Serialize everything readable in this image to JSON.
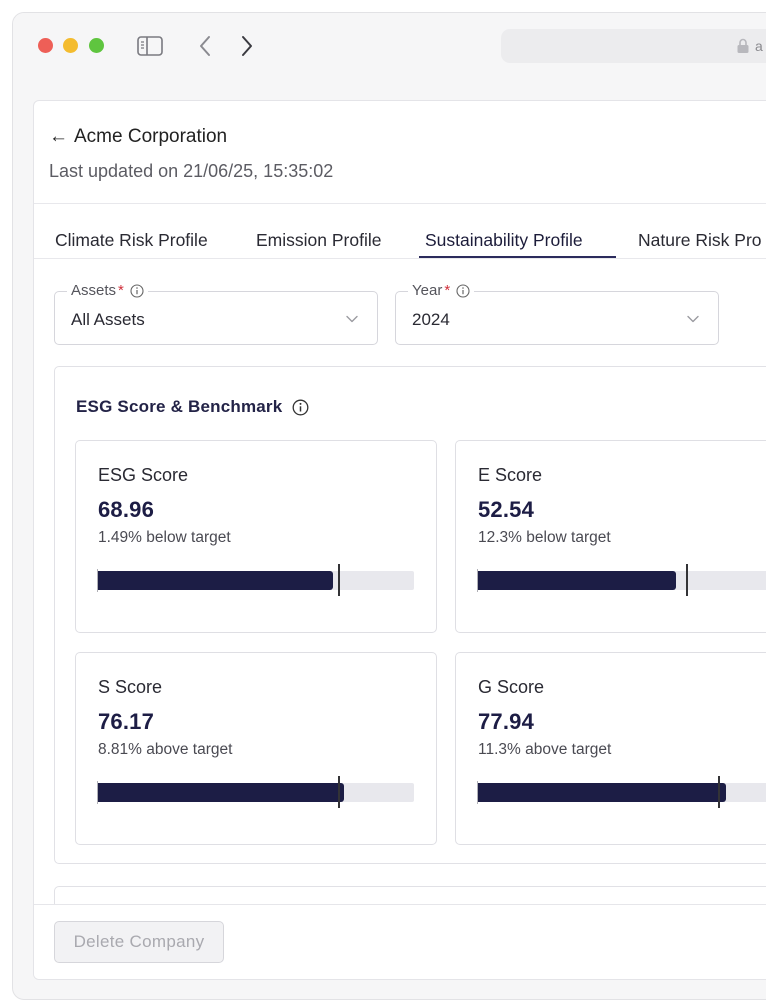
{
  "browser": {
    "url_fragment": "a"
  },
  "header": {
    "back_arrow": "←",
    "company_name": "Acme Corporation",
    "last_updated": "Last updated on 21/06/25, 15:35:02"
  },
  "tabs": [
    {
      "label": "Climate Risk Profile"
    },
    {
      "label": "Emission Profile"
    },
    {
      "label": "Sustainability Profile"
    },
    {
      "label": "Nature Risk Pro"
    }
  ],
  "active_tab": "Sustainability Profile",
  "filters": {
    "assets": {
      "label": "Assets",
      "required_mark": "*",
      "value": "All Assets"
    },
    "year": {
      "label": "Year",
      "required_mark": "*",
      "value": "2024"
    }
  },
  "esg_section": {
    "title": "ESG Score & Benchmark",
    "cards": [
      {
        "title": "ESG Score",
        "value": "68.96",
        "note": "1.49% below target",
        "score_fraction": 0.7452,
        "target_fraction": 0.7626
      },
      {
        "title": "E Score",
        "value": "52.54",
        "note": "12.3% below target",
        "score_fraction": 0.6262,
        "target_fraction": 0.6617
      },
      {
        "title": "S Score",
        "value": "76.17",
        "note": "8.81% above target",
        "score_fraction": 0.7781,
        "target_fraction": 0.7626
      },
      {
        "title": "G Score",
        "value": "77.94",
        "note": "11.3% above target",
        "score_fraction": 0.7855,
        "target_fraction": 0.7626
      }
    ]
  },
  "footer": {
    "delete_label": "Delete Company"
  },
  "colors": {
    "bar_fill": "#1c1d45",
    "bar_track": "#e8e8ed",
    "target_marker": "#333336",
    "required": "#d0303b",
    "tab_underline": "#2b2b5c"
  }
}
